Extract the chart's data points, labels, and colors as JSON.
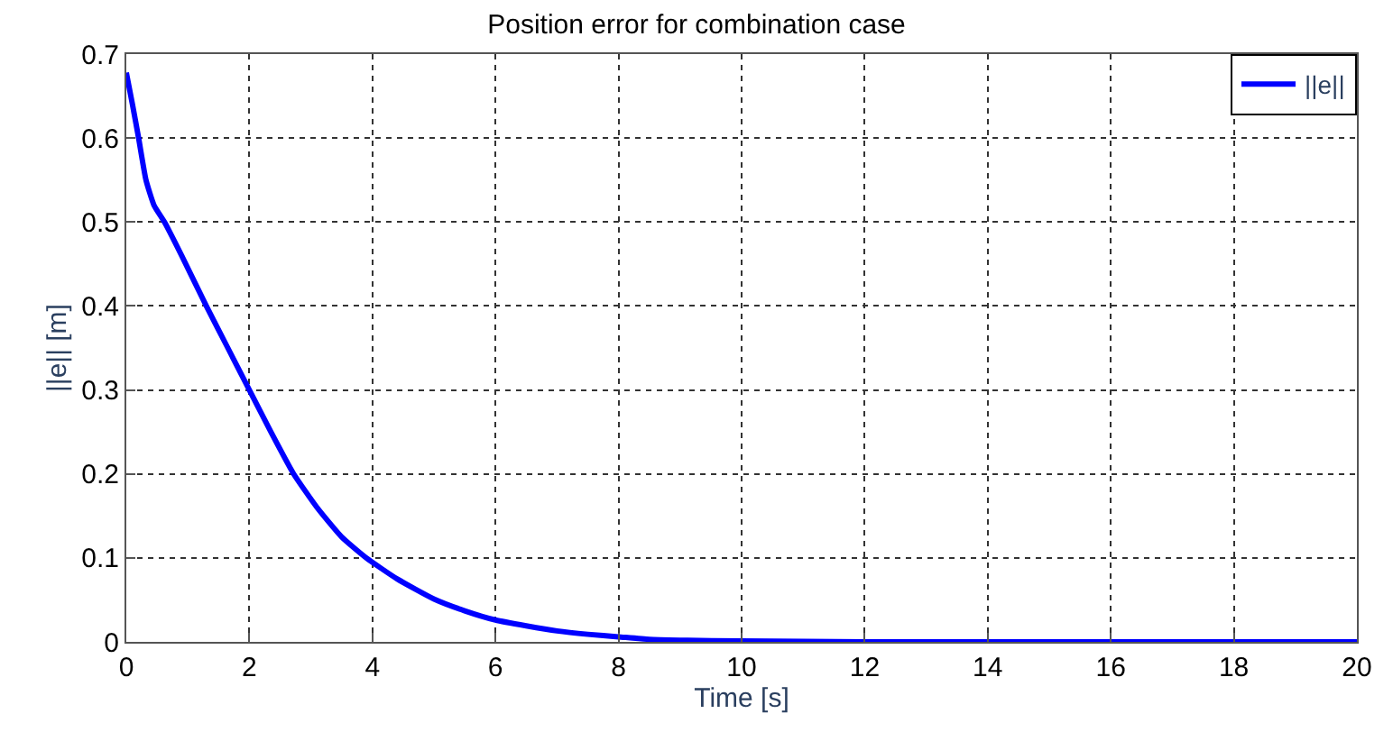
{
  "chart_data": {
    "type": "line",
    "title": "Position error for combination case",
    "xlabel": "Time [s]",
    "ylabel": "||e|| [m]",
    "x": [
      0,
      0.1,
      0.2,
      0.32,
      0.45,
      0.62,
      0.9,
      1.3,
      1.65,
      2,
      2.35,
      2.72,
      3.1,
      3.5,
      3.9,
      4.4,
      5,
      5.5,
      6,
      6.5,
      7,
      7.5,
      8,
      8.5,
      9,
      10,
      12,
      14,
      16,
      18,
      20
    ],
    "series": [
      {
        "name": "||e||",
        "color": "#0000ff",
        "values": [
          0.678,
          0.64,
          0.6,
          0.55,
          0.52,
          0.5,
          0.46,
          0.4,
          0.35,
          0.3,
          0.25,
          0.2,
          0.16,
          0.125,
          0.1,
          0.075,
          0.051,
          0.037,
          0.026,
          0.019,
          0.013,
          0.009,
          0.006,
          0.003,
          0.002,
          0.001,
          0,
          0,
          0,
          0,
          0
        ]
      }
    ],
    "xlim": [
      0,
      20
    ],
    "xticks": [
      0,
      2,
      4,
      6,
      8,
      10,
      12,
      14,
      16,
      18,
      20
    ],
    "ylim": [
      0,
      0.7
    ],
    "yticks": [
      0,
      0.1,
      0.2,
      0.3,
      0.4,
      0.5,
      0.6,
      0.7
    ],
    "grid": true,
    "legend": "top right",
    "marker": "none",
    "line_style": "solid"
  }
}
